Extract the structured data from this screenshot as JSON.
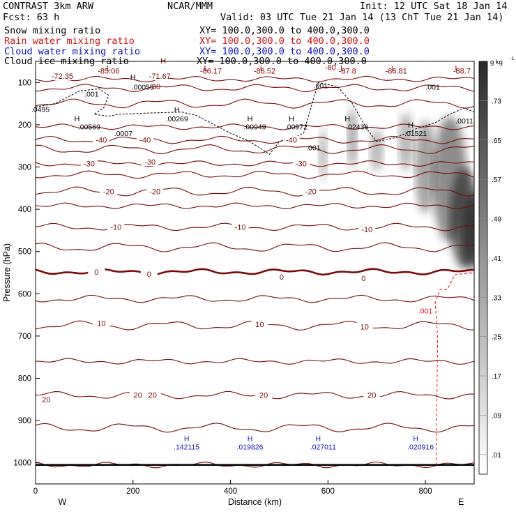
{
  "header": {
    "title": "CONTRAST  3km ARW",
    "center": "NCAR/MMM",
    "init": "Init: 12 UTC Sat 18 Jan 14",
    "fcst": "Fcst:   63 h",
    "valid": "Valid: 03 UTC Tue 21 Jan 14 (13 ChT Tue 21 Jan 14)"
  },
  "fields": [
    {
      "label": "Snow mixing ratio",
      "xy": "XY= 100.0,300.0 to 400.0,300.0",
      "color": "#000000"
    },
    {
      "label": "Rain water mixing ratio",
      "xy": "XY= 100.0,300.0 to 400.0,300.0",
      "color": "#d01010"
    },
    {
      "label": "Cloud water mixing ratio",
      "xy": "XY= 100.0,300.0 to 400.0,300.0",
      "color": "#1010c0"
    },
    {
      "label": "Cloud ice mixing ratio",
      "xy": "XY= 100.0,300.0 to 400.0,300.0",
      "color": "#000000"
    }
  ],
  "chart_data": {
    "type": "cross-section contour",
    "xlabel": "Distance (km)",
    "ylabel": "Pressure (hPa)",
    "xlim": [
      0,
      900
    ],
    "ylim": [
      1050,
      50
    ],
    "x_ticks": [
      0,
      200,
      400,
      600,
      800
    ],
    "y_ticks": [
      100,
      200,
      300,
      400,
      500,
      600,
      700,
      800,
      900,
      1000
    ],
    "left_end": "W",
    "right_end": "E",
    "colorbar": {
      "unit": "g kg",
      "unit_exp": "-1",
      "ticks": [
        ".01",
        ".09",
        ".17",
        ".25",
        ".33",
        ".41",
        ".49",
        ".57",
        ".65",
        ".73"
      ]
    },
    "temperature_contours": [
      {
        "value": -70,
        "p": 92,
        "labels": [
          {
            "text": "-72.35",
            "x": 55,
            "p": 85
          },
          {
            "text": "-71.67",
            "x": 255,
            "p": 85
          }
        ]
      },
      {
        "value": -60,
        "p": 113,
        "labels": []
      },
      {
        "value": -50,
        "p": 150,
        "labels": []
      },
      {
        "value": -45,
        "p": 205,
        "labels": []
      },
      {
        "value": -40,
        "p": 236,
        "labels": [
          {
            "text": "-40",
            "x": 135,
            "p": 236
          },
          {
            "text": "-40",
            "x": 225,
            "p": 236
          },
          {
            "text": "-40",
            "x": 525,
            "p": 236
          }
        ]
      },
      {
        "value": -35,
        "p": 258,
        "labels": []
      },
      {
        "value": -30,
        "p": 292,
        "labels": [
          {
            "text": "-30",
            "x": 110,
            "p": 292
          },
          {
            "text": "-30",
            "x": 235,
            "p": 288
          },
          {
            "text": "-30",
            "x": 545,
            "p": 292
          }
        ]
      },
      {
        "value": -25,
        "p": 318,
        "labels": []
      },
      {
        "value": -20,
        "p": 358,
        "labels": [
          {
            "text": "-20",
            "x": 150,
            "p": 358
          },
          {
            "text": "-20",
            "x": 245,
            "p": 358
          },
          {
            "text": "-20",
            "x": 565,
            "p": 358
          }
        ]
      },
      {
        "value": -15,
        "p": 392,
        "labels": []
      },
      {
        "value": -10,
        "p": 442,
        "labels": [
          {
            "text": "-10",
            "x": 165,
            "p": 442
          },
          {
            "text": "-10",
            "x": 420,
            "p": 442
          },
          {
            "text": "-10",
            "x": 680,
            "p": 448
          }
        ]
      },
      {
        "value": -5,
        "p": 490,
        "labels": []
      },
      {
        "value": 0,
        "p": 548,
        "labels": [
          {
            "text": "0",
            "x": 125,
            "p": 548
          },
          {
            "text": "0",
            "x": 233,
            "p": 553
          },
          {
            "text": "0",
            "x": 505,
            "p": 560
          },
          {
            "text": "0",
            "x": 673,
            "p": 563
          }
        ]
      },
      {
        "value": 5,
        "p": 612,
        "labels": []
      },
      {
        "value": 10,
        "p": 675,
        "labels": [
          {
            "text": "10",
            "x": 135,
            "p": 670
          },
          {
            "text": "10",
            "x": 460,
            "p": 672
          },
          {
            "text": "10",
            "x": 675,
            "p": 678
          }
        ]
      },
      {
        "value": 15,
        "p": 760,
        "labels": []
      },
      {
        "value": 20,
        "p": 840,
        "labels": [
          {
            "text": "20",
            "x": 22,
            "p": 850
          },
          {
            "text": "20",
            "x": 210,
            "p": 840
          },
          {
            "text": "20",
            "x": 240,
            "p": 840
          },
          {
            "text": "20",
            "x": 468,
            "p": 840
          },
          {
            "text": "20",
            "x": 690,
            "p": 840
          }
        ]
      },
      {
        "value": 25,
        "p": 917,
        "labels": []
      },
      {
        "value": 30,
        "p": 1005,
        "labels": []
      }
    ],
    "extrema_labels": [
      {
        "text": "L",
        "x": 150,
        "p": 66,
        "color": "#8b0000"
      },
      {
        "text": "-85.06",
        "x": 150,
        "p": 72,
        "color": "#8b0000"
      },
      {
        "text": "L",
        "x": 350,
        "p": 66,
        "color": "#8b0000"
      },
      {
        "text": "-86.17",
        "x": 360,
        "p": 72,
        "color": "#8b0000"
      },
      {
        "text": "L",
        "x": 465,
        "p": 66,
        "color": "#8b0000"
      },
      {
        "text": "-86.52",
        "x": 470,
        "p": 72,
        "color": "#8b0000"
      },
      {
        "text": "L",
        "x": 630,
        "p": 66,
        "color": "#8b0000"
      },
      {
        "text": "-87.8",
        "x": 640,
        "p": 72,
        "color": "#8b0000"
      },
      {
        "text": "L",
        "x": 735,
        "p": 66,
        "color": "#8b0000"
      },
      {
        "text": "-86.81",
        "x": 740,
        "p": 72,
        "color": "#8b0000"
      },
      {
        "text": "L",
        "x": 865,
        "p": 66,
        "color": "#8b0000"
      },
      {
        "text": "-88.7",
        "x": 875,
        "p": 72,
        "color": "#8b0000"
      },
      {
        "text": "H",
        "x": 262,
        "p": 48,
        "color": "#8b0000"
      },
      {
        "text": "-80",
        "x": 605,
        "p": 64,
        "color": "#8b0000"
      },
      {
        "text": "-80",
        "x": 245,
        "p": 109,
        "color": "#8b0000"
      }
    ],
    "snow_labels": [
      {
        "text": ".00055",
        "x": 220,
        "p": 110
      },
      {
        "text": ".001",
        "x": 115,
        "p": 127
      },
      {
        "text": ".001",
        "x": 585,
        "p": 107
      },
      {
        "text": ".001",
        "x": 815,
        "p": 110
      },
      {
        "text": ".0495",
        "x": 10,
        "p": 163
      },
      {
        "text": ".00269",
        "x": 290,
        "p": 185
      },
      {
        "text": ".00569",
        "x": 110,
        "p": 204
      },
      {
        "text": ".0007",
        "x": 180,
        "p": 220
      },
      {
        "text": ".00949",
        "x": 450,
        "p": 204
      },
      {
        "text": ".00972",
        "x": 535,
        "p": 204
      },
      {
        "text": ".02436",
        "x": 660,
        "p": 204
      },
      {
        "text": ".01521",
        "x": 780,
        "p": 220
      },
      {
        "text": ".0011",
        "x": 880,
        "p": 190
      },
      {
        "text": ".001",
        "x": 570,
        "p": 254
      }
    ],
    "snow_H": [
      {
        "x": 200,
        "p": 87
      },
      {
        "x": 85,
        "p": 185
      },
      {
        "x": 290,
        "p": 165
      },
      {
        "x": 440,
        "p": 185
      },
      {
        "x": 525,
        "p": 185
      },
      {
        "x": 640,
        "p": 185
      },
      {
        "x": 770,
        "p": 200
      }
    ],
    "rain_labels": [
      {
        "text": ".001",
        "x": 800,
        "p": 640
      }
    ],
    "cloud_water_labels": [
      {
        "text": "H",
        "x": 310,
        "p": 942
      },
      {
        "text": ".142115",
        "x": 310,
        "p": 962
      },
      {
        "text": "H",
        "x": 440,
        "p": 942
      },
      {
        "text": ".019826",
        "x": 440,
        "p": 962
      },
      {
        "text": "H",
        "x": 580,
        "p": 942
      },
      {
        "text": ".027011",
        "x": 590,
        "p": 962
      },
      {
        "text": "H",
        "x": 780,
        "p": 942
      },
      {
        "text": ".020916",
        "x": 790,
        "p": 962
      }
    ],
    "ground_p": 1005
  }
}
